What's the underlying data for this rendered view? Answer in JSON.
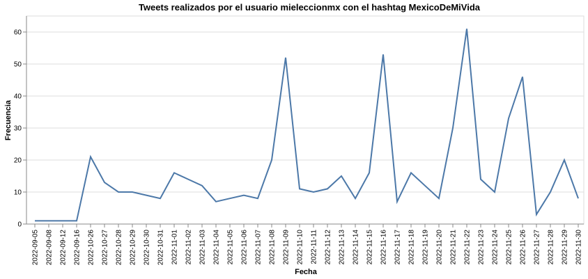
{
  "chart_data": {
    "type": "line",
    "title": "Tweets realizados por el usuario mieleccionmx con el hashtag MexicoDeMiVida",
    "xlabel": "Fecha",
    "ylabel": "Frecuencia",
    "ylim": [
      0,
      65
    ],
    "yticks": [
      0,
      10,
      20,
      30,
      40,
      50,
      60
    ],
    "grid": true,
    "x": [
      "2022-09-05",
      "2022-09-08",
      "2022-09-12",
      "2022-09-16",
      "2022-10-26",
      "2022-10-27",
      "2022-10-28",
      "2022-10-29",
      "2022-10-30",
      "2022-10-31",
      "2022-11-01",
      "2022-11-02",
      "2022-11-03",
      "2022-11-04",
      "2022-11-05",
      "2022-11-06",
      "2022-11-07",
      "2022-11-08",
      "2022-11-09",
      "2022-11-10",
      "2022-11-11",
      "2022-11-12",
      "2022-11-13",
      "2022-11-14",
      "2022-11-15",
      "2022-11-16",
      "2022-11-17",
      "2022-11-18",
      "2022-11-19",
      "2022-11-20",
      "2022-11-21",
      "2022-11-22",
      "2022-11-23",
      "2022-11-24",
      "2022-11-25",
      "2022-11-26",
      "2022-11-27",
      "2022-11-28",
      "2022-11-29",
      "2022-11-30"
    ],
    "values": [
      1,
      1,
      1,
      1,
      21,
      13,
      10,
      10,
      9,
      8,
      16,
      14,
      12,
      7,
      8,
      9,
      8,
      20,
      52,
      11,
      10,
      11,
      15,
      8,
      16,
      53,
      7,
      16,
      12,
      8,
      30,
      61,
      14,
      10,
      33,
      46,
      3,
      10,
      20,
      8
    ],
    "line_color": "#4c78a8"
  }
}
